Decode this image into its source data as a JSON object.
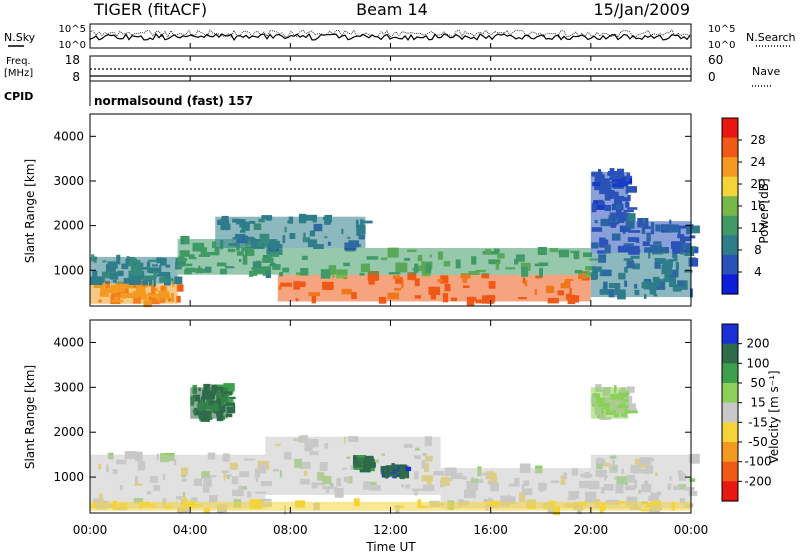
{
  "header": {
    "station": "TIGER (fitACF)",
    "beam": "Beam 14",
    "date": "15/Jan/2009"
  },
  "noise_panel": {
    "left_label": "N.Sky",
    "right_label": "N.Search",
    "tick_top": "10^5",
    "tick_bottom": "10^0"
  },
  "freq_panel": {
    "left_label": "Freq.",
    "left_unit": "[MHz]",
    "left_ticks": [
      "18",
      "8"
    ],
    "right_label": "Nave",
    "right_ticks": [
      "60",
      "0"
    ]
  },
  "cpid_panel": {
    "label": "CPID",
    "mode": "normalsound (fast) 157"
  },
  "power_panel": {
    "ylabel": "Slant Range [km]",
    "yticks": [
      "1000",
      "2000",
      "3000",
      "4000"
    ],
    "colorbar_label": "Power [dB]",
    "colorbar_ticks": [
      "4",
      "8",
      "12",
      "16",
      "20",
      "24",
      "28"
    ]
  },
  "velocity_panel": {
    "ylabel": "Slant Range [km]",
    "yticks": [
      "1000",
      "2000",
      "3000",
      "4000"
    ],
    "colorbar_label": "Velocity [m s⁻¹]",
    "colorbar_ticks": [
      "200",
      "100",
      "50",
      "15",
      "-15",
      "-50",
      "-100",
      "-200"
    ]
  },
  "x_axis": {
    "ticks": [
      "00:00",
      "04:00",
      "08:00",
      "12:00",
      "16:00",
      "20:00",
      "00:00"
    ],
    "label": "Time UT"
  },
  "chart_data": [
    {
      "type": "heatmap",
      "title": "",
      "xlabel": "Time UT",
      "ylabel": "Slant Range [km]",
      "xlim": [
        0,
        24
      ],
      "ylim": [
        200,
        4500
      ],
      "colorbar": {
        "label": "Power [dB]",
        "range": [
          0,
          32
        ],
        "ticks": [
          4,
          8,
          12,
          16,
          20,
          24,
          28
        ],
        "colors": [
          "#0b1fd8",
          "#2a52b8",
          "#2f7d8a",
          "#3f9a66",
          "#78b848",
          "#f4d43a",
          "#f49a20",
          "#ef5a16",
          "#e81810"
        ]
      },
      "regions": [
        {
          "t": [
            0.0,
            3.5
          ],
          "r": [
            250,
            700
          ],
          "value": 24
        },
        {
          "t": [
            0.0,
            3.5
          ],
          "r": [
            700,
            1300
          ],
          "value": 10
        },
        {
          "t": [
            3.5,
            7.5
          ],
          "r": [
            900,
            1700
          ],
          "value": 12
        },
        {
          "t": [
            7.5,
            20.0
          ],
          "r": [
            300,
            900
          ],
          "value": 26
        },
        {
          "t": [
            7.5,
            20.0
          ],
          "r": [
            900,
            1500
          ],
          "value": 14
        },
        {
          "t": [
            5.0,
            11.0
          ],
          "r": [
            1500,
            2200
          ],
          "value": 9
        },
        {
          "t": [
            20.0,
            24.0
          ],
          "r": [
            400,
            1400
          ],
          "value": 8
        },
        {
          "t": [
            20.0,
            24.0
          ],
          "r": [
            1400,
            2100
          ],
          "value": 7
        },
        {
          "t": [
            20.0,
            21.5
          ],
          "r": [
            2100,
            3200
          ],
          "value": 5
        }
      ]
    },
    {
      "type": "heatmap",
      "title": "",
      "xlabel": "Time UT",
      "ylabel": "Slant Range [km]",
      "xlim": [
        0,
        24
      ],
      "ylim": [
        200,
        4500
      ],
      "colorbar": {
        "label": "Velocity [m s⁻¹]",
        "range": [
          -250,
          250
        ],
        "ticks": [
          200,
          100,
          50,
          15,
          -15,
          -50,
          -100,
          -200
        ],
        "colors": [
          "#1a2fd6",
          "#2f6a4a",
          "#3da04a",
          "#8cd05a",
          "#c8c8c8",
          "#f4d43a",
          "#f49a20",
          "#ef5a16",
          "#e81810"
        ]
      },
      "regions": [
        {
          "t": [
            0.0,
            7.0
          ],
          "r": [
            300,
            1500
          ],
          "value": 0
        },
        {
          "t": [
            7.0,
            14.0
          ],
          "r": [
            600,
            1900
          ],
          "value": 0
        },
        {
          "t": [
            14.0,
            20.0
          ],
          "r": [
            300,
            1200
          ],
          "value": 0
        },
        {
          "t": [
            20.0,
            24.0
          ],
          "r": [
            300,
            1500
          ],
          "value": 0
        },
        {
          "t": [
            4.0,
            5.5
          ],
          "r": [
            2300,
            3000
          ],
          "value": 150
        },
        {
          "t": [
            10.5,
            11.0
          ],
          "r": [
            1200,
            1450
          ],
          "value": 150
        },
        {
          "t": [
            11.6,
            12.4
          ],
          "r": [
            1050,
            1200
          ],
          "value": 180
        },
        {
          "t": [
            20.0,
            21.5
          ],
          "r": [
            2300,
            3000
          ],
          "value": 30
        },
        {
          "t": [
            0.0,
            24.0
          ],
          "r": [
            250,
            450
          ],
          "value": -30
        }
      ]
    }
  ]
}
